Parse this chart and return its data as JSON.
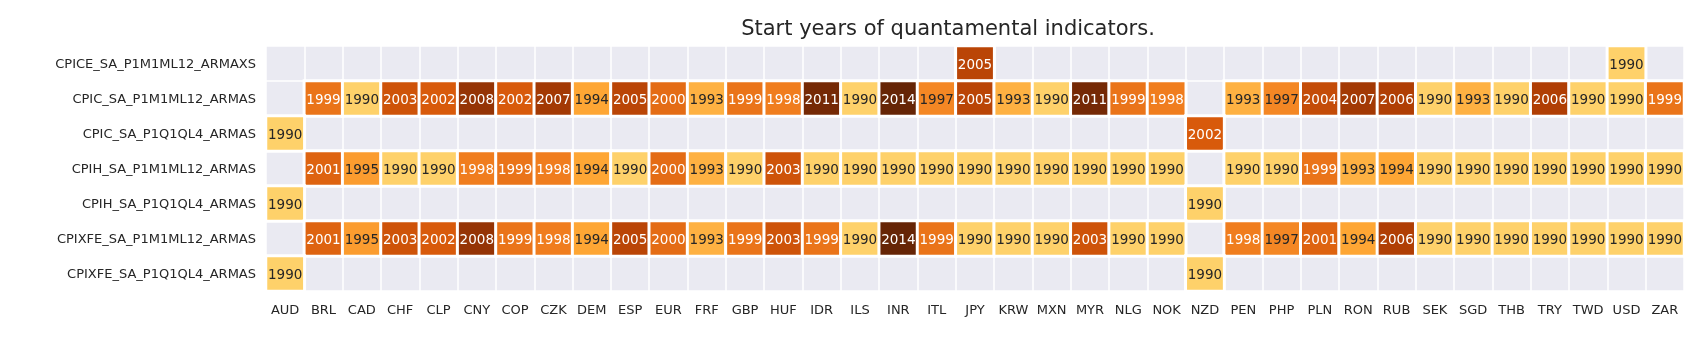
{
  "chart_data": {
    "type": "heatmap",
    "title": "Start years of quantamental indicators.",
    "categories": [
      "AUD",
      "BRL",
      "CAD",
      "CHF",
      "CLP",
      "CNY",
      "COP",
      "CZK",
      "DEM",
      "ESP",
      "EUR",
      "FRF",
      "GBP",
      "HUF",
      "IDR",
      "ILS",
      "INR",
      "ITL",
      "JPY",
      "KRW",
      "MXN",
      "MYR",
      "NLG",
      "NOK",
      "NZD",
      "PEN",
      "PHP",
      "PLN",
      "RON",
      "RUB",
      "SEK",
      "SGD",
      "THB",
      "TRY",
      "TWD",
      "USD",
      "ZAR"
    ],
    "y_categories": [
      "CPICE_SA_P1M1ML12_ARMAXS",
      "CPIC_SA_P1M1ML12_ARMAS",
      "CPIC_SA_P1Q1QL4_ARMAS",
      "CPIH_SA_P1M1ML12_ARMAS",
      "CPIH_SA_P1Q1QL4_ARMAS",
      "CPIXFE_SA_P1M1ML12_ARMAS",
      "CPIXFE_SA_P1Q1QL4_ARMAS"
    ],
    "cells": [
      [
        null,
        null,
        null,
        null,
        null,
        null,
        null,
        null,
        null,
        null,
        null,
        null,
        null,
        null,
        null,
        null,
        null,
        null,
        2005,
        null,
        null,
        null,
        null,
        null,
        null,
        null,
        null,
        null,
        null,
        null,
        null,
        null,
        null,
        null,
        null,
        1990,
        null
      ],
      [
        null,
        1999,
        1990,
        2003,
        2002,
        2008,
        2002,
        2007,
        1994,
        2005,
        2000,
        1993,
        1999,
        1998,
        2011,
        1990,
        2014,
        1997,
        2005,
        1993,
        1990,
        2011,
        1999,
        1998,
        null,
        1993,
        1997,
        2004,
        2007,
        2006,
        1990,
        1993,
        1990,
        2006,
        1990,
        1990,
        1999
      ],
      [
        1990,
        null,
        null,
        null,
        null,
        null,
        null,
        null,
        null,
        null,
        null,
        null,
        null,
        null,
        null,
        null,
        null,
        null,
        null,
        null,
        null,
        null,
        null,
        null,
        2002,
        null,
        null,
        null,
        null,
        null,
        null,
        null,
        null,
        null,
        null,
        null,
        null
      ],
      [
        null,
        2001,
        1995,
        1990,
        1990,
        1998,
        1999,
        1998,
        1994,
        1990,
        2000,
        1993,
        1990,
        2003,
        1990,
        1990,
        1990,
        1990,
        1990,
        1990,
        1990,
        1990,
        1990,
        1990,
        null,
        1990,
        1990,
        1999,
        1993,
        1994,
        1990,
        1990,
        1990,
        1990,
        1990,
        1990,
        1990
      ],
      [
        1990,
        null,
        null,
        null,
        null,
        null,
        null,
        null,
        null,
        null,
        null,
        null,
        null,
        null,
        null,
        null,
        null,
        null,
        null,
        null,
        null,
        null,
        null,
        null,
        1990,
        null,
        null,
        null,
        null,
        null,
        null,
        null,
        null,
        null,
        null,
        null,
        null
      ],
      [
        null,
        2001,
        1995,
        2003,
        2002,
        2008,
        1999,
        1998,
        1994,
        2005,
        2000,
        1993,
        1999,
        2003,
        1999,
        1990,
        2014,
        1999,
        1990,
        1990,
        1990,
        2003,
        1990,
        1990,
        null,
        1998,
        1997,
        2001,
        1994,
        2006,
        1990,
        1990,
        1990,
        1990,
        1990,
        1990,
        1990
      ],
      [
        1990,
        null,
        null,
        null,
        null,
        null,
        null,
        null,
        null,
        null,
        null,
        null,
        null,
        null,
        null,
        null,
        null,
        null,
        null,
        null,
        null,
        null,
        null,
        null,
        1990,
        null,
        null,
        null,
        null,
        null,
        null,
        null,
        null,
        null,
        null,
        null,
        null
      ]
    ],
    "data_labels": true,
    "grid": true
  }
}
